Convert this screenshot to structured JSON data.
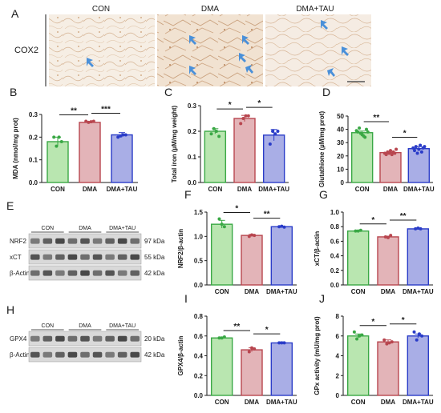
{
  "colors": {
    "con_fill": "#b9e6b0",
    "con_stroke": "#3aa845",
    "dma_fill": "#e3b4b8",
    "dma_stroke": "#b8464f",
    "tau_fill": "#a9aee6",
    "tau_stroke": "#2a3cc8",
    "ink": "#1a1a1a"
  },
  "panel_a": {
    "letter": "A",
    "row_label": "COX2",
    "images": [
      {
        "label": "CON"
      },
      {
        "label": "DMA"
      },
      {
        "label": "DMA+TAU"
      }
    ]
  },
  "wb_e": {
    "letter": "E",
    "lane_groups": [
      "CON",
      "DMA",
      "DMA+TAU"
    ],
    "rows": [
      {
        "protein": "NRF2",
        "size": "97 kDa"
      },
      {
        "protein": "xCT",
        "size": "55 kDa"
      },
      {
        "protein": "β-Actin",
        "size": "42 kDa"
      }
    ]
  },
  "wb_h": {
    "letter": "H",
    "lane_groups": [
      "CON",
      "DMA",
      "DMA+TAU"
    ],
    "rows": [
      {
        "protein": "GPX4",
        "size": "20 kDa"
      },
      {
        "protein": "β-Actin",
        "size": "42 kDa"
      }
    ]
  },
  "chart_data": [
    {
      "letter": "B",
      "type": "bar",
      "categories": [
        "CON",
        "DMA",
        "DMA+TAU"
      ],
      "values": [
        0.18,
        0.265,
        0.21
      ],
      "errors": [
        0.02,
        0.004,
        0.01
      ],
      "points": [
        [
          0.2,
          0.16,
          0.2,
          0.18
        ],
        [
          0.27,
          0.265,
          0.268,
          0.27
        ],
        [
          0.2,
          0.205,
          0.21,
          0.21
        ]
      ],
      "ylabel": "MDA (nmol/mg prot)",
      "ylim": [
        0.0,
        0.3
      ],
      "yticks": [
        "0.0",
        "0.1",
        "0.2",
        "0.3"
      ],
      "significance": [
        {
          "from": 0,
          "to": 1,
          "label": "**"
        },
        {
          "from": 1,
          "to": 2,
          "label": "***"
        }
      ]
    },
    {
      "letter": "C",
      "type": "bar",
      "categories": [
        "CON",
        "DMA",
        "DMA+TAU"
      ],
      "values": [
        0.2,
        0.25,
        0.185
      ],
      "errors": [
        0.01,
        0.012,
        0.022
      ],
      "points": [
        [
          0.19,
          0.21,
          0.2,
          0.18
        ],
        [
          0.23,
          0.25,
          0.26,
          0.26
        ],
        [
          0.15,
          0.2,
          0.19,
          0.2
        ]
      ],
      "ylabel": "Total iron (µM/mg weight)",
      "ylim": [
        0.0,
        0.3
      ],
      "yticks": [
        "0.0",
        "0.1",
        "0.2",
        "0.3"
      ],
      "significance": [
        {
          "from": 0,
          "to": 1,
          "label": "*"
        },
        {
          "from": 1,
          "to": 2,
          "label": "*"
        }
      ]
    },
    {
      "letter": "D",
      "type": "bar",
      "categories": [
        "CON",
        "DMA",
        "DMA+TAU"
      ],
      "values": [
        37.5,
        22.5,
        25.5
      ],
      "errors": [
        1.2,
        0.9,
        1.5
      ],
      "points": [
        [
          39,
          38,
          41,
          37,
          36,
          35,
          34,
          40,
          38
        ],
        [
          22,
          21,
          23,
          22,
          24,
          21,
          23,
          22,
          25
        ],
        [
          26,
          24,
          27,
          22,
          25,
          28,
          23,
          26,
          27
        ]
      ],
      "ylabel": "Glutathione (µM/mg prot)",
      "ylim": [
        0,
        50
      ],
      "yticks": [
        "0",
        "10",
        "20",
        "30",
        "40",
        "50"
      ],
      "significance": [
        {
          "from": 0,
          "to": 1,
          "label": "**"
        },
        {
          "from": 1,
          "to": 2,
          "label": "*"
        }
      ]
    },
    {
      "letter": "F",
      "type": "bar",
      "categories": [
        "CON",
        "DMA",
        "DMA+TAU"
      ],
      "values": [
        1.25,
        1.02,
        1.2
      ],
      "errors": [
        0.08,
        0.02,
        0.01
      ],
      "points": [
        [
          1.36,
          1.25,
          1.2
        ],
        [
          1.0,
          1.03,
          1.02
        ],
        [
          1.2,
          1.21,
          1.19
        ]
      ],
      "ylabel": "NRF2/β-actin",
      "ylim": [
        0.0,
        1.5
      ],
      "yticks": [
        "0.0",
        "0.5",
        "1.0",
        "1.5"
      ],
      "significance": [
        {
          "from": 0,
          "to": 1,
          "label": "*"
        },
        {
          "from": 1,
          "to": 2,
          "label": "**"
        }
      ]
    },
    {
      "letter": "G",
      "type": "bar",
      "categories": [
        "CON",
        "DMA",
        "DMA+TAU"
      ],
      "values": [
        0.74,
        0.66,
        0.77
      ],
      "errors": [
        0.01,
        0.01,
        0.01
      ],
      "points": [
        [
          0.74,
          0.74,
          0.75
        ],
        [
          0.66,
          0.65,
          0.68
        ],
        [
          0.77,
          0.78,
          0.77
        ]
      ],
      "ylabel": "xCT/β-actin",
      "ylim": [
        0.0,
        1.0
      ],
      "yticks": [
        "0.0",
        "0.2",
        "0.4",
        "0.6",
        "0.8",
        "1.0"
      ],
      "significance": [
        {
          "from": 0,
          "to": 1,
          "label": "*"
        },
        {
          "from": 1,
          "to": 2,
          "label": "**"
        }
      ]
    },
    {
      "letter": "I",
      "type": "bar",
      "categories": [
        "CON",
        "DMA",
        "DMA+TAU"
      ],
      "values": [
        0.58,
        0.46,
        0.53
      ],
      "errors": [
        0.01,
        0.02,
        0.01
      ],
      "points": [
        [
          0.58,
          0.58,
          0.59
        ],
        [
          0.44,
          0.48,
          0.47
        ],
        [
          0.53,
          0.53,
          0.53
        ]
      ],
      "ylabel": "GPX4/β-actin",
      "ylim": [
        0.0,
        0.8
      ],
      "yticks": [
        "0.0",
        "0.2",
        "0.4",
        "0.6",
        "0.8"
      ],
      "significance": [
        {
          "from": 0,
          "to": 1,
          "label": "**"
        },
        {
          "from": 1,
          "to": 2,
          "label": "*"
        }
      ]
    },
    {
      "letter": "J",
      "type": "bar",
      "categories": [
        "CON",
        "DMA",
        "DMA+TAU"
      ],
      "values": [
        6.0,
        5.4,
        6.0
      ],
      "errors": [
        0.2,
        0.2,
        0.2
      ],
      "points": [
        [
          6.4,
          5.7,
          6.0,
          6.1
        ],
        [
          5.6,
          5.2,
          5.3,
          5.4
        ],
        [
          6.4,
          5.6,
          6.2,
          6.0
        ]
      ],
      "ylabel": "GPx activity (mU/mg prot)",
      "ylim": [
        0,
        8
      ],
      "yticks": [
        "0",
        "2",
        "4",
        "6",
        "8"
      ],
      "significance": [
        {
          "from": 0,
          "to": 1,
          "label": "*"
        },
        {
          "from": 1,
          "to": 2,
          "label": "*"
        }
      ]
    }
  ]
}
